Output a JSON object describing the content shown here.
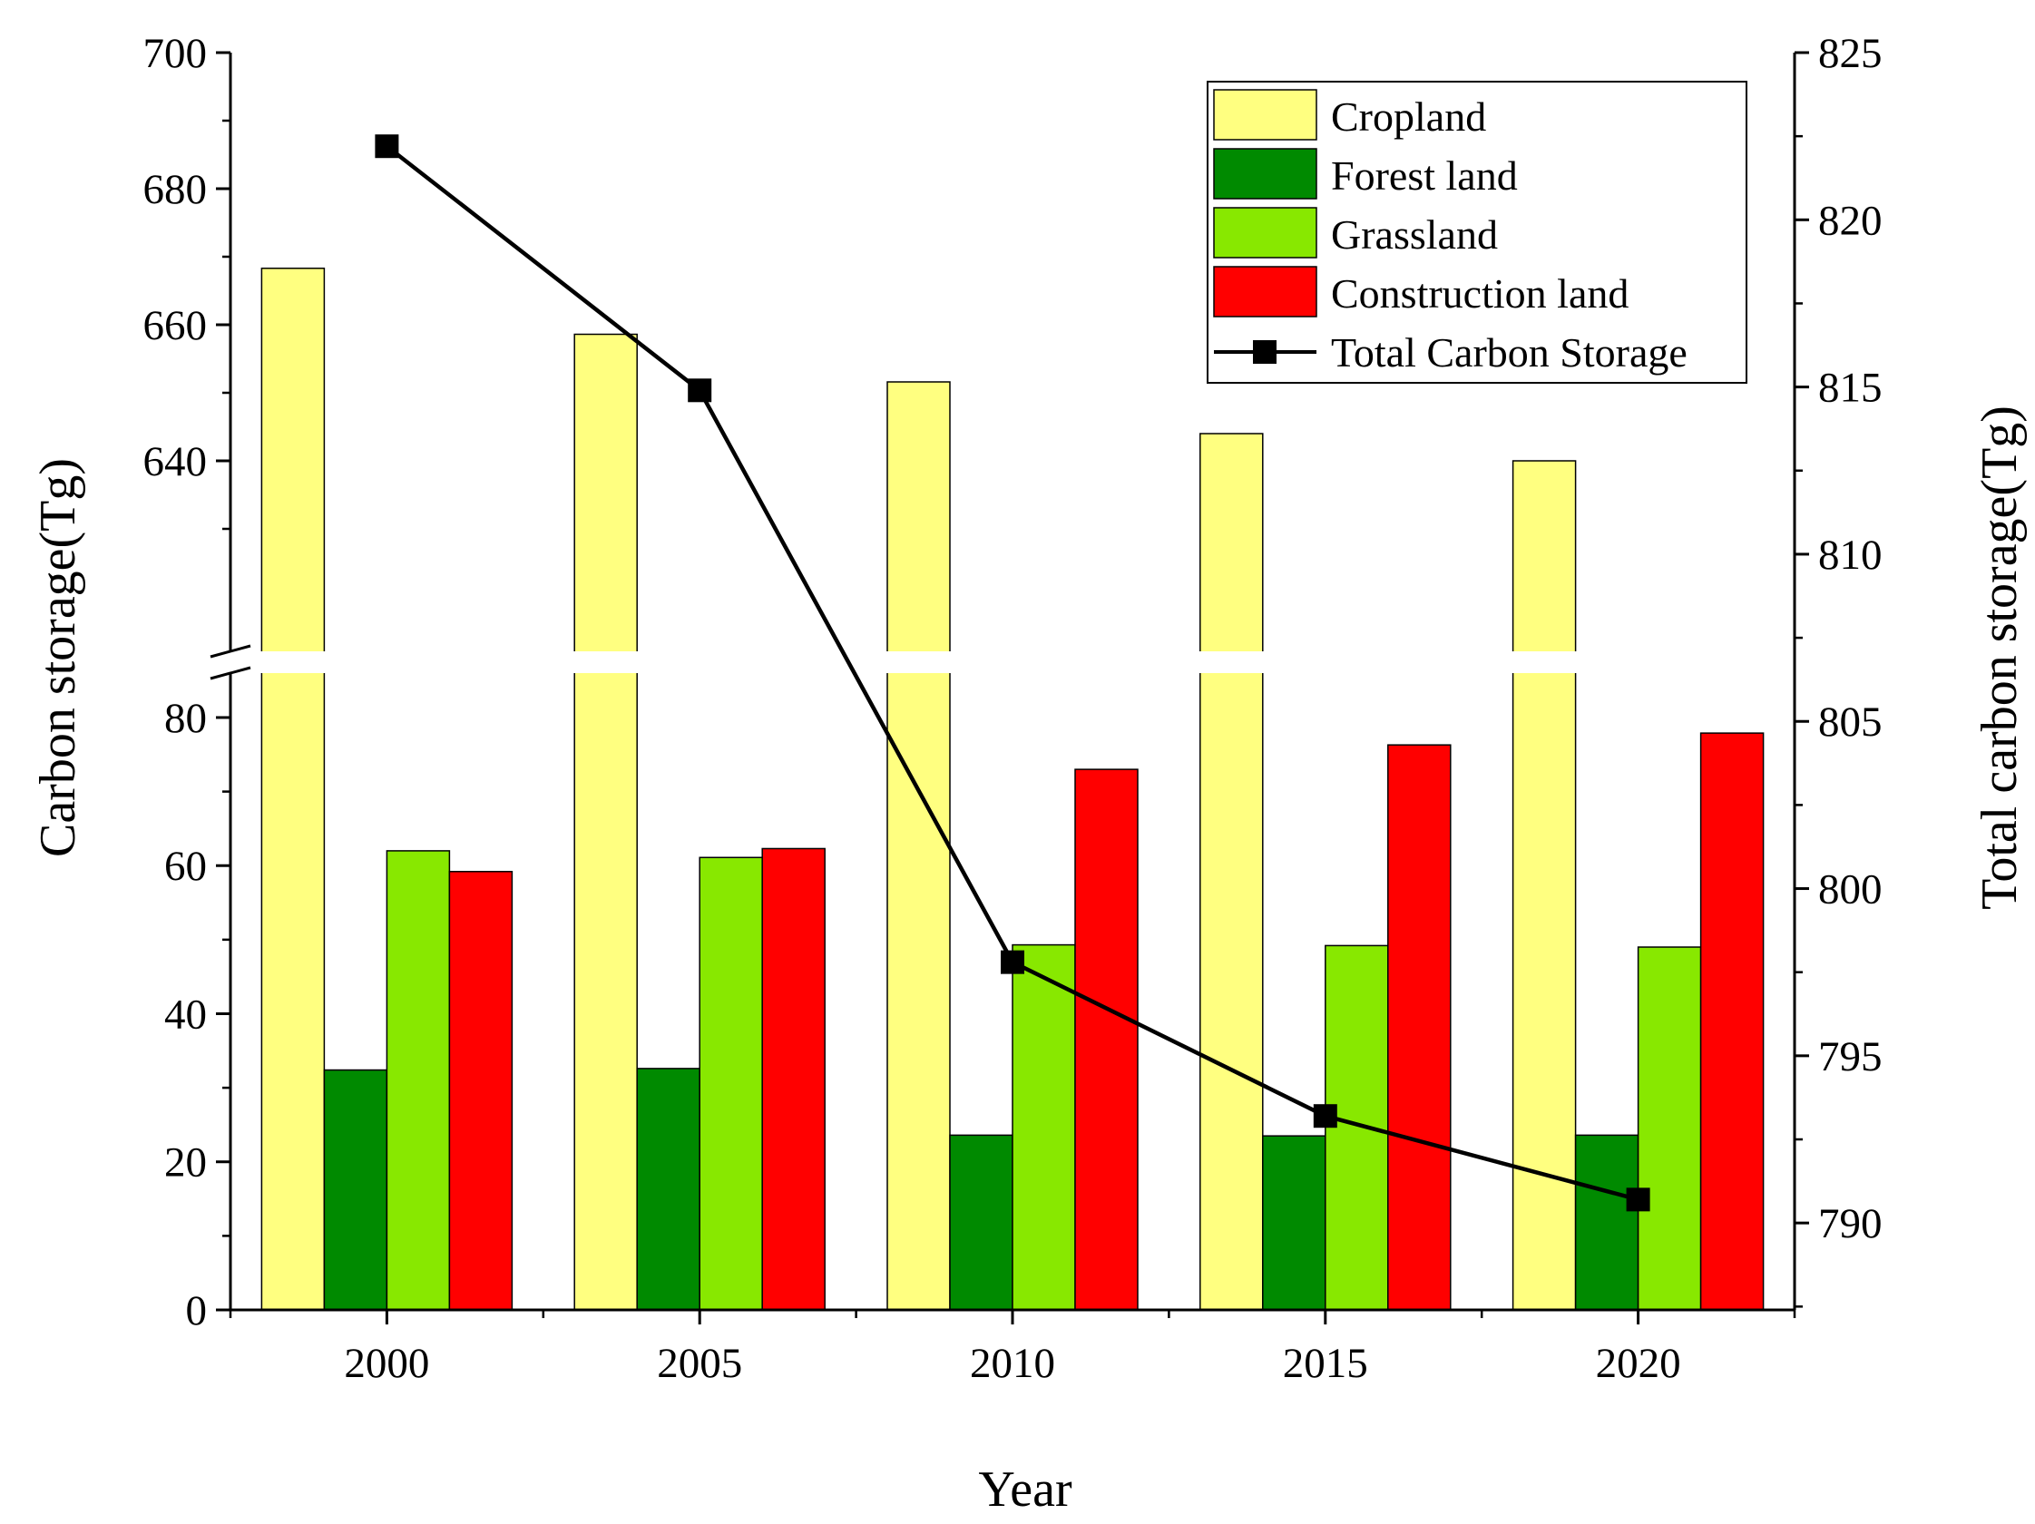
{
  "chart_data": {
    "type": "bar",
    "title": "",
    "categories": [
      "2000",
      "2005",
      "2010",
      "2015",
      "2020"
    ],
    "xlabel": "Year",
    "ylabel": "Carbon storage(Tg)",
    "y2label": "Total carbon storage(Tg)",
    "axis_break": {
      "lower_range": [
        0,
        86
      ],
      "upper_range": [
        612,
        700
      ]
    },
    "y_ticks_lower": [
      0,
      20,
      40,
      60,
      80
    ],
    "y_ticks_upper": [
      640,
      660,
      680,
      700
    ],
    "y2_ticks": [
      790,
      795,
      800,
      805,
      810,
      815,
      820,
      825
    ],
    "y2lim": [
      787.4,
      825
    ],
    "series": [
      {
        "name": "Cropland",
        "kind": "bar",
        "color": "#FFFF80",
        "values": [
          668.3,
          658.6,
          651.6,
          644.0,
          640.0
        ]
      },
      {
        "name": "Forest land",
        "kind": "bar",
        "color": "#008A00",
        "values": [
          32.4,
          32.6,
          23.6,
          23.5,
          23.6
        ]
      },
      {
        "name": "Grassland",
        "kind": "bar",
        "color": "#88E800",
        "values": [
          62.0,
          61.1,
          49.3,
          49.2,
          49.0
        ]
      },
      {
        "name": "Construction land",
        "kind": "bar",
        "color": "#FF0000",
        "values": [
          59.2,
          62.3,
          73.0,
          76.3,
          77.9
        ]
      },
      {
        "name": "Total Carbon Storage",
        "kind": "line",
        "axis": "right",
        "color": "#000000",
        "values": [
          822.2,
          814.9,
          797.8,
          793.2,
          790.7
        ]
      }
    ],
    "legend_position": "top-right",
    "grid": false
  }
}
